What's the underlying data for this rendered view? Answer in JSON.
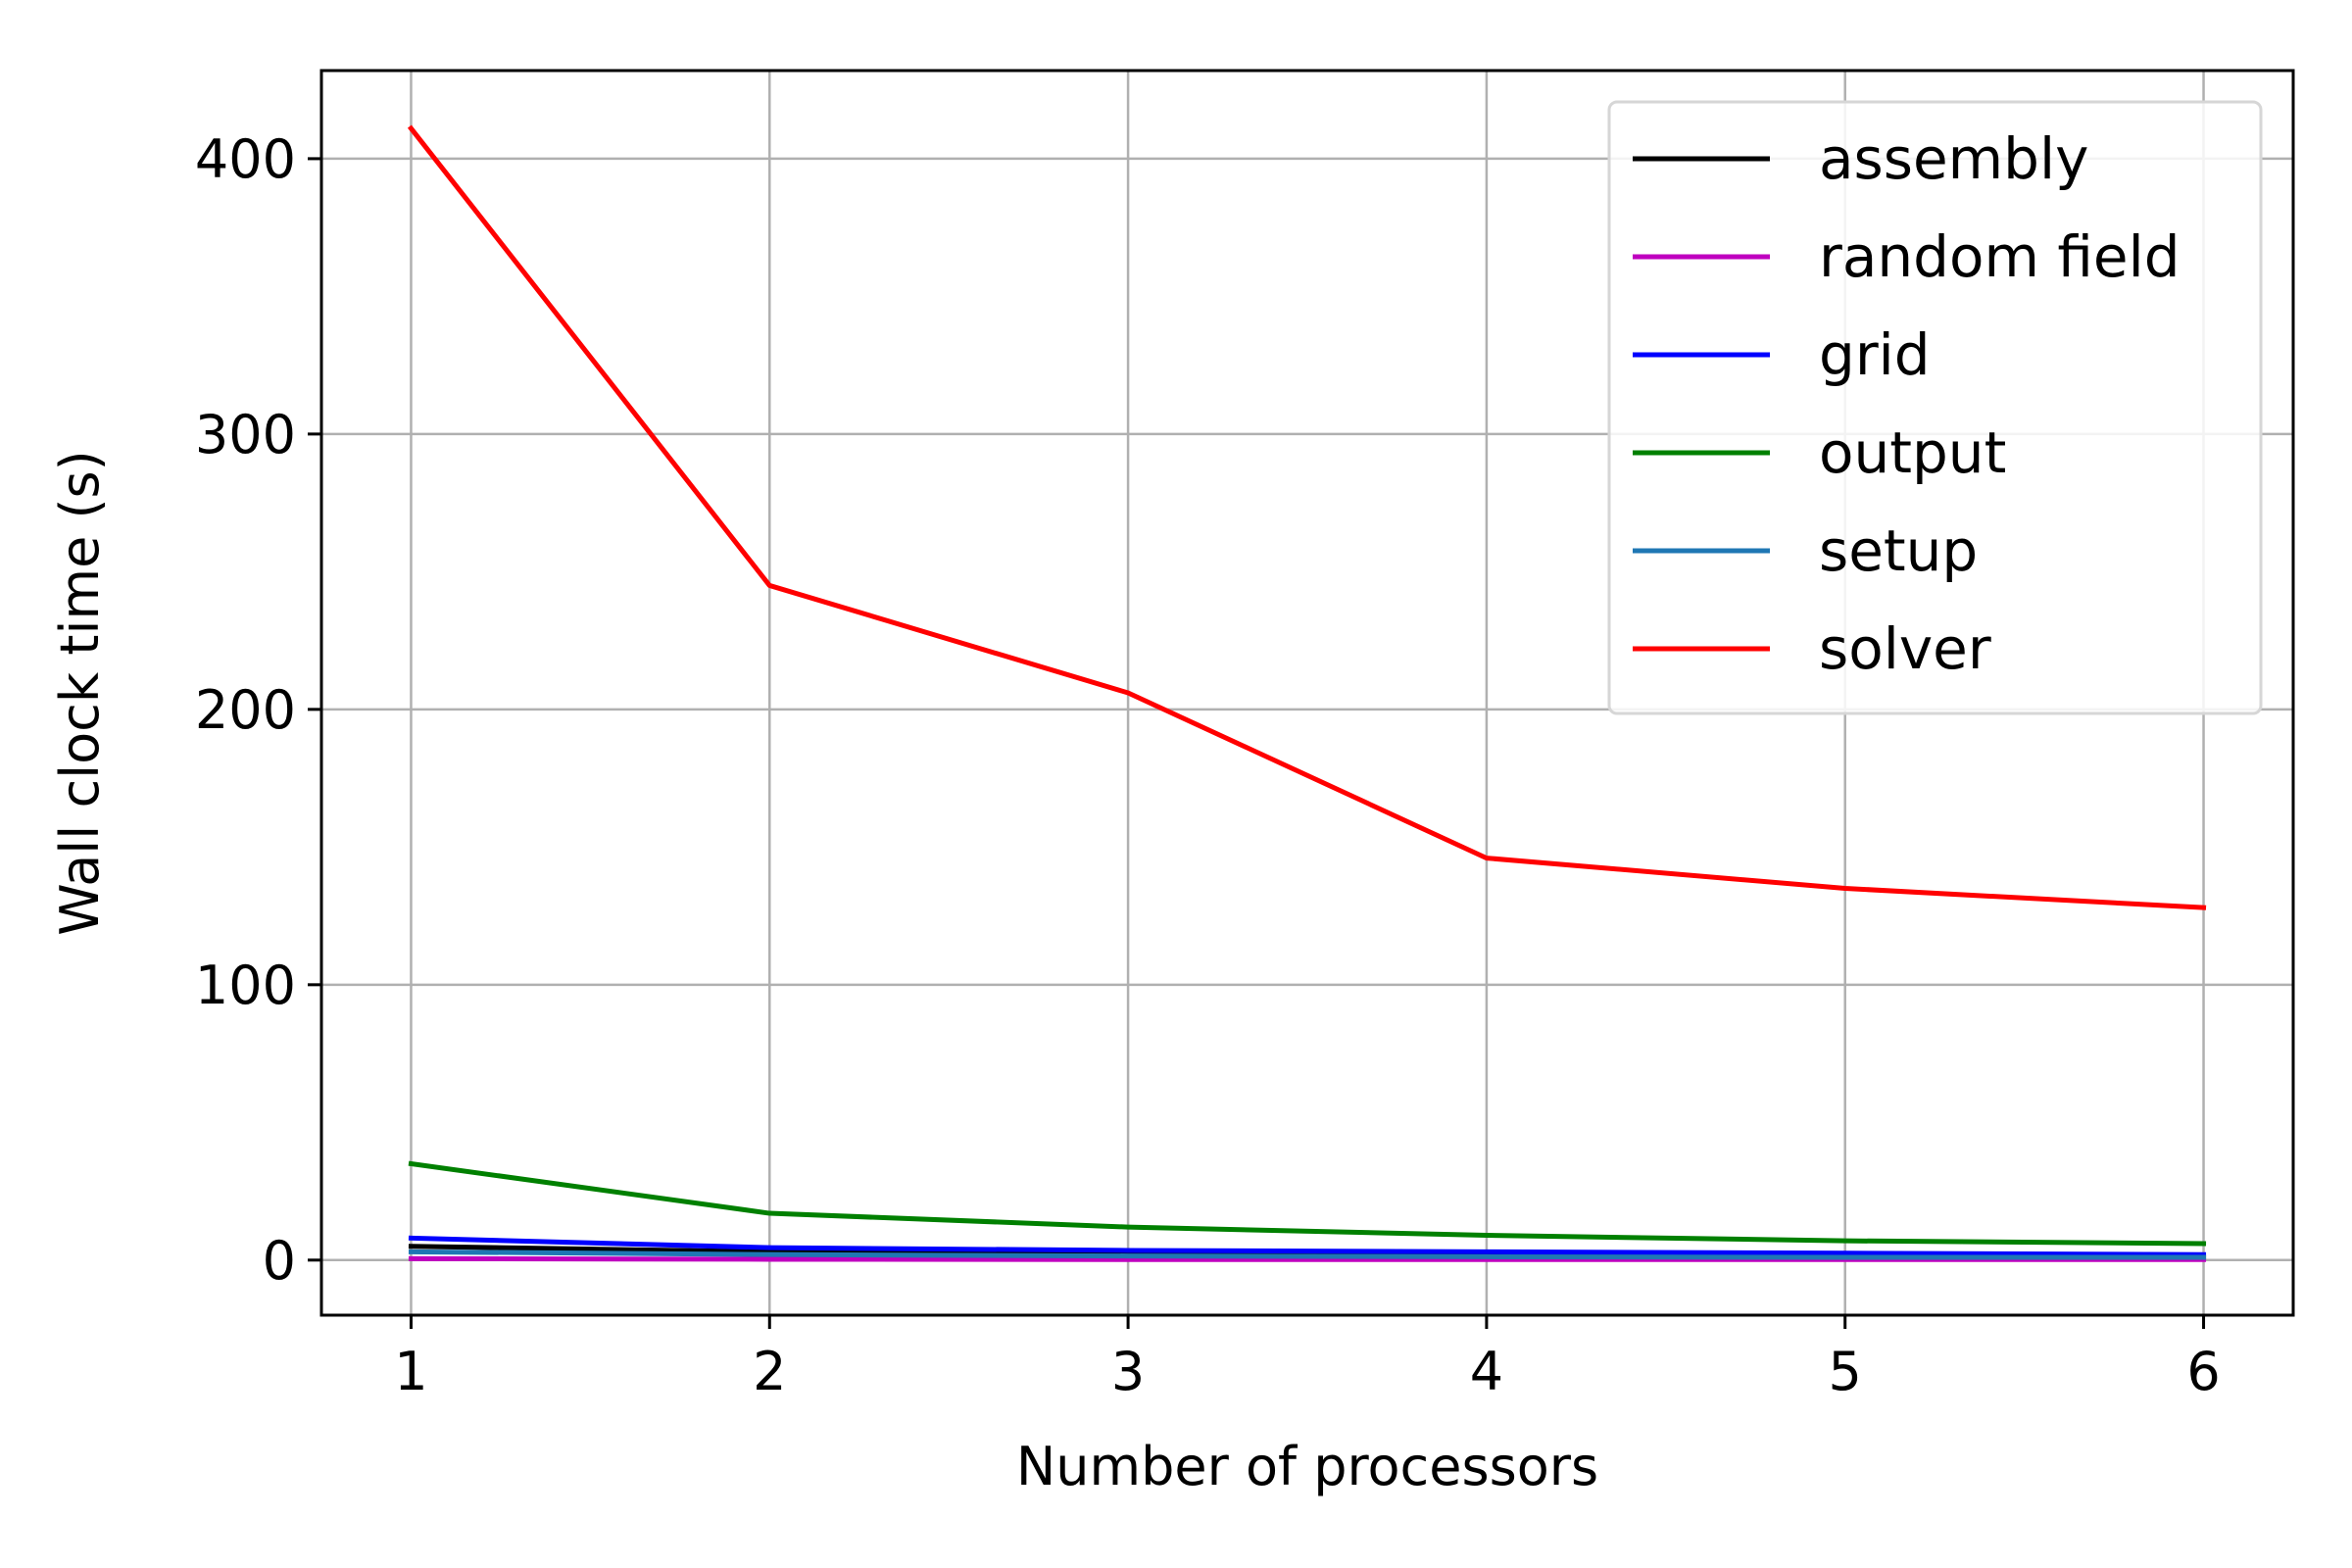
{
  "chart_data": {
    "type": "line",
    "xlabel": "Number of processors",
    "ylabel": "Wall clock time (s)",
    "x": [
      1,
      2,
      3,
      4,
      5,
      6
    ],
    "xlim": [
      0.75,
      6.25
    ],
    "ylim": [
      -20,
      432
    ],
    "xticks": [
      1,
      2,
      3,
      4,
      5,
      6
    ],
    "yticks": [
      0,
      100,
      200,
      300,
      400
    ],
    "grid": true,
    "legend_position": "top-right",
    "series": [
      {
        "name": "assembly",
        "color": "#000000",
        "values": [
          5,
          3,
          2,
          1.5,
          1,
          1
        ]
      },
      {
        "name": "random field",
        "color": "#bf00bf",
        "values": [
          0.5,
          0.3,
          0.2,
          0.2,
          0.2,
          0.2
        ]
      },
      {
        "name": "grid",
        "color": "#0000ff",
        "values": [
          8,
          4.5,
          3.5,
          3,
          2.5,
          2
        ]
      },
      {
        "name": "output",
        "color": "#008000",
        "values": [
          35,
          17,
          12,
          9,
          7,
          6
        ]
      },
      {
        "name": "setup",
        "color": "#1f77b4",
        "values": [
          3,
          2,
          1.5,
          1.2,
          1,
          1
        ]
      },
      {
        "name": "solver",
        "color": "#ff0000",
        "values": [
          411,
          245,
          206,
          146,
          135,
          128
        ]
      }
    ]
  }
}
